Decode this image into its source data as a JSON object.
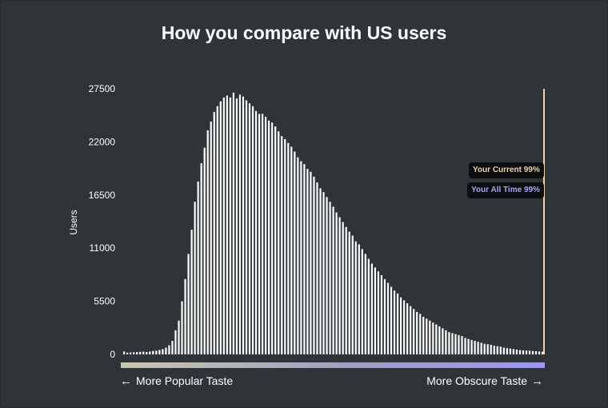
{
  "title": "How you compare with US users",
  "chart_data": {
    "type": "bar",
    "title": "How you compare with US users",
    "xlabel": "",
    "ylabel": "Users",
    "ylim": [
      0,
      27500
    ],
    "yticks": [
      "27500",
      "22000",
      "16500",
      "11000",
      "5500",
      "0"
    ],
    "grid": false,
    "values": [
      300,
      180,
      200,
      220,
      240,
      260,
      280,
      250,
      300,
      350,
      380,
      450,
      550,
      700,
      950,
      1400,
      2500,
      3500,
      5500,
      7800,
      10400,
      12900,
      15800,
      17900,
      19800,
      21400,
      23200,
      24100,
      25100,
      25700,
      26200,
      26600,
      26800,
      26600,
      27100,
      26500,
      26900,
      26700,
      26300,
      26000,
      25700,
      25200,
      24900,
      24900,
      24600,
      24200,
      24000,
      23600,
      23100,
      22600,
      22300,
      21900,
      21500,
      21000,
      20400,
      20000,
      19700,
      19200,
      18900,
      18400,
      17800,
      17200,
      16800,
      16300,
      15800,
      15300,
      14700,
      14200,
      13700,
      13200,
      12700,
      12300,
      11700,
      11400,
      10900,
      10400,
      9900,
      9400,
      9000,
      8600,
      8200,
      7800,
      7400,
      7000,
      6600,
      6300,
      5900,
      5600,
      5300,
      5000,
      4700,
      4400,
      4200,
      3900,
      3700,
      3500,
      3300,
      3100,
      2900,
      2700,
      2500,
      2300,
      2200,
      2100,
      2000,
      1900,
      1700,
      1600,
      1500,
      1400,
      1300,
      1200,
      1100,
      1050,
      1000,
      900,
      850,
      800,
      700,
      650,
      600,
      550,
      500,
      450,
      420,
      400,
      380,
      350,
      330,
      300,
      280
    ],
    "markers": [
      {
        "label": "Your Current 99%",
        "color": "#ecd3a4",
        "value": 99
      },
      {
        "label": "Your All Time 99%",
        "color": "#a7a4ff",
        "value": 99
      }
    ]
  },
  "axis": {
    "left_label": "More Popular Taste",
    "right_label": "More Obscure Taste"
  },
  "colors": {
    "background": "#2e3437",
    "bars": "#ffffff",
    "current_marker": "#ecd3a4",
    "alltime_marker": "#a7a4ff"
  },
  "icons": {
    "left_arrow": "arrow-left-icon",
    "right_arrow": "arrow-right-icon"
  }
}
